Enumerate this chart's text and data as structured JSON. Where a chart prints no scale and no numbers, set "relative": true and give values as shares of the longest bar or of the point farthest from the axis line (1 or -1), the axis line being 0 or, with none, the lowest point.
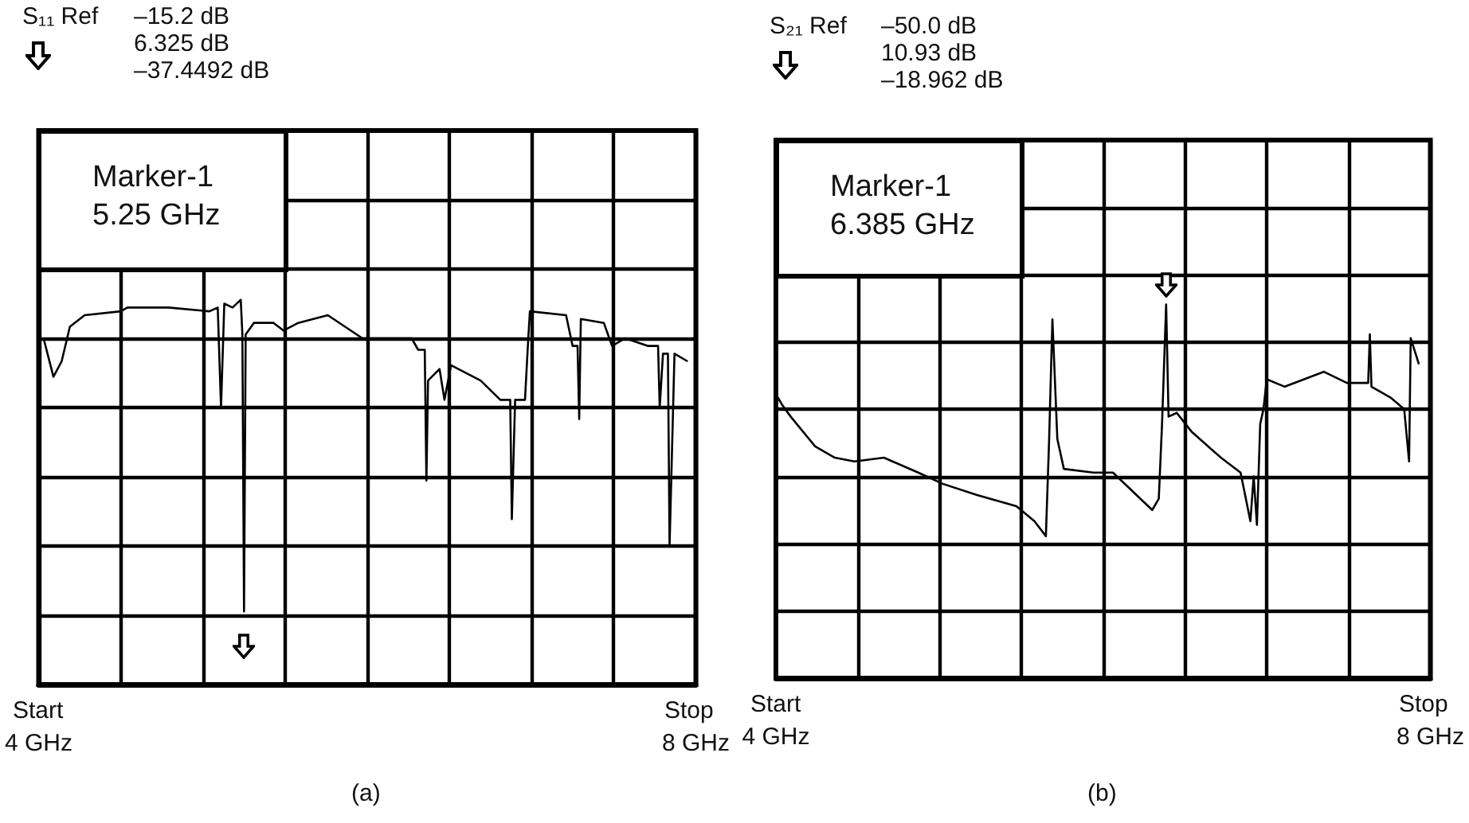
{
  "chart_data": [
    {
      "type": "line",
      "title": "(a)",
      "relative": true,
      "grid": true,
      "xlim": [
        4,
        8
      ],
      "xticks": [
        {
          "value": 4,
          "label": "4 GHz"
        },
        {
          "value": 4.5,
          "label": null
        },
        {
          "value": 5,
          "label": null
        },
        {
          "value": 5.5,
          "label": null
        },
        {
          "value": 6,
          "label": null
        },
        {
          "value": 6.5,
          "label": null
        },
        {
          "value": 7,
          "label": null
        },
        {
          "value": 7.5,
          "label": null
        },
        {
          "value": 8,
          "label": "8 GHz"
        }
      ],
      "annotations": [
        "S₁₁ Ref",
        "–15.2 dB",
        "6.325 dB",
        "–37.4492 dB",
        "Start",
        "Stop",
        "Marker-1\n5.25 GHz"
      ],
      "series": [
        {
          "color": "#000000",
          "x": [
            4.03,
            4.09,
            4.14,
            4.19,
            4.28,
            4.5,
            4.54,
            4.79,
            5.04,
            5.09,
            5.11,
            5.13,
            5.18,
            5.23,
            5.24,
            5.25,
            5.26,
            5.31,
            5.43,
            5.49,
            5.58,
            5.76,
            5.97,
            6.06,
            6.27,
            6.31,
            6.35,
            6.36,
            6.37,
            6.44,
            6.47,
            6.51,
            6.69,
            6.81,
            6.87,
            6.88,
            6.9,
            6.96,
            6.98,
            6.99,
            7.21,
            7.25,
            7.28,
            7.29,
            7.3,
            7.44,
            7.49,
            7.57,
            7.71,
            7.77,
            7.78,
            7.8,
            7.83,
            7.84,
            7.87,
            7.95
          ],
          "values": [
            0.9,
            0.8,
            0.84,
            0.93,
            0.96,
            0.97,
            0.98,
            0.98,
            0.97,
            0.98,
            0.72,
            0.99,
            0.98,
            1.0,
            0.91,
            0.19,
            0.91,
            0.94,
            0.94,
            0.92,
            0.94,
            0.96,
            0.9,
            0.9,
            0.9,
            0.87,
            0.87,
            0.53,
            0.79,
            0.82,
            0.74,
            0.83,
            0.79,
            0.74,
            0.74,
            0.43,
            0.74,
            0.74,
            0.9,
            0.97,
            0.96,
            0.88,
            0.88,
            0.69,
            0.95,
            0.94,
            0.88,
            0.9,
            0.88,
            0.88,
            0.72,
            0.86,
            0.86,
            0.36,
            0.86,
            0.84
          ]
        }
      ]
    },
    {
      "type": "line",
      "title": "(b)",
      "relative": true,
      "grid": true,
      "xlim": [
        4,
        8
      ],
      "xticks": [
        {
          "value": 4,
          "label": "4 GHz"
        },
        {
          "value": 4.5,
          "label": null
        },
        {
          "value": 5,
          "label": null
        },
        {
          "value": 5.5,
          "label": null
        },
        {
          "value": 6,
          "label": null
        },
        {
          "value": 6.5,
          "label": null
        },
        {
          "value": 7,
          "label": null
        },
        {
          "value": 7.5,
          "label": null
        },
        {
          "value": 8,
          "label": "8 GHz"
        }
      ],
      "annotations": [
        "S₂₁ Ref",
        "–50.0 dB",
        "10.93 dB",
        "–18.962 dB",
        "Start",
        "Stop",
        "Marker-1\n6.385 GHz"
      ],
      "series": [
        {
          "color": "#000000",
          "x": [
            4.0,
            4.04,
            4.09,
            4.24,
            4.36,
            4.48,
            4.66,
            4.87,
            5.02,
            5.23,
            5.47,
            5.58,
            5.65,
            5.67,
            5.69,
            5.72,
            5.76,
            5.94,
            6.06,
            6.18,
            6.3,
            6.34,
            6.36,
            6.385,
            6.4,
            6.45,
            6.54,
            6.72,
            6.84,
            6.9,
            6.92,
            6.94,
            6.96,
            6.98,
            7.0,
            7.11,
            7.35,
            7.49,
            7.62,
            7.63,
            7.64,
            7.76,
            7.84,
            7.87,
            7.88,
            7.93
          ],
          "values": [
            0.76,
            0.73,
            0.7,
            0.62,
            0.59,
            0.58,
            0.59,
            0.55,
            0.52,
            0.49,
            0.46,
            0.42,
            0.38,
            0.64,
            0.96,
            0.64,
            0.56,
            0.55,
            0.55,
            0.5,
            0.45,
            0.48,
            0.68,
            1.0,
            0.7,
            0.71,
            0.66,
            0.59,
            0.55,
            0.42,
            0.54,
            0.41,
            0.68,
            0.72,
            0.8,
            0.78,
            0.82,
            0.79,
            0.79,
            0.92,
            0.78,
            0.75,
            0.72,
            0.58,
            0.91,
            0.84
          ]
        }
      ]
    }
  ]
}
